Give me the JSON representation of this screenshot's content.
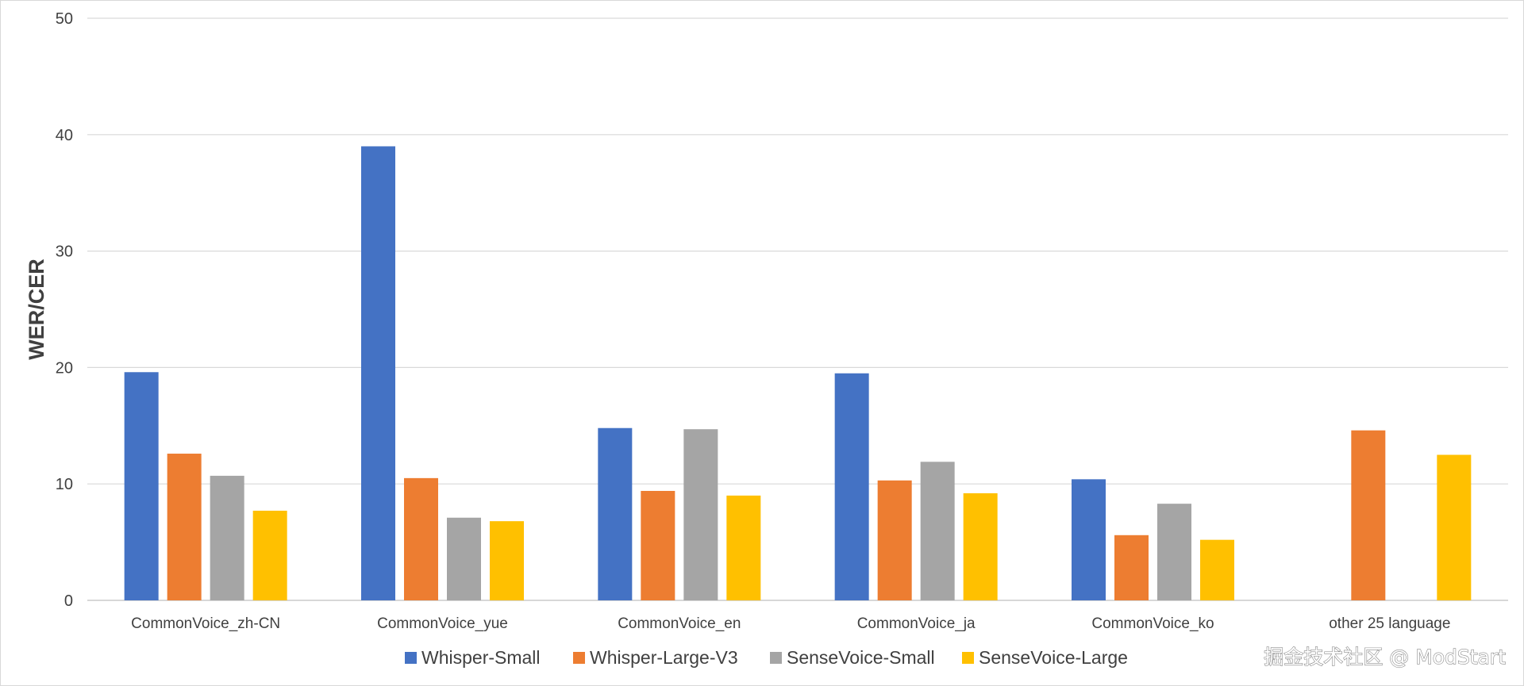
{
  "chart_data": {
    "type": "bar",
    "categories": [
      "CommonVoice_zh-CN",
      "CommonVoice_yue",
      "CommonVoice_en",
      "CommonVoice_ja",
      "CommonVoice_ko",
      "other 25 language"
    ],
    "series": [
      {
        "name": "Whisper-Small",
        "color": "#4472C4",
        "values": [
          19.6,
          39.0,
          14.8,
          19.5,
          10.4,
          null
        ]
      },
      {
        "name": "Whisper-Large-V3",
        "color": "#ED7D31",
        "values": [
          12.6,
          10.5,
          9.4,
          10.3,
          5.6,
          14.6
        ]
      },
      {
        "name": "SenseVoice-Small",
        "color": "#A5A5A5",
        "values": [
          10.7,
          7.1,
          14.7,
          11.9,
          8.3,
          null
        ]
      },
      {
        "name": "SenseVoice-Large",
        "color": "#FFC000",
        "values": [
          7.7,
          6.8,
          9.0,
          9.2,
          5.2,
          12.5
        ]
      }
    ],
    "ylabel": "WER/CER",
    "xlabel": "",
    "ylim": [
      0,
      50
    ],
    "yticks": [
      0,
      10,
      20,
      30,
      40,
      50
    ],
    "grid": true,
    "legend_position": "bottom"
  },
  "watermark": "掘金技术社区 @ ModStart"
}
